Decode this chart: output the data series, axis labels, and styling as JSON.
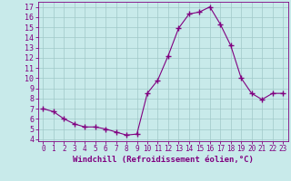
{
  "x": [
    0,
    1,
    2,
    3,
    4,
    5,
    6,
    7,
    8,
    9,
    10,
    11,
    12,
    13,
    14,
    15,
    16,
    17,
    18,
    19,
    20,
    21,
    22,
    23
  ],
  "y": [
    7.0,
    6.7,
    6.0,
    5.5,
    5.2,
    5.2,
    5.0,
    4.7,
    4.4,
    4.5,
    8.5,
    9.8,
    12.2,
    14.9,
    16.3,
    16.5,
    17.0,
    15.3,
    13.2,
    10.0,
    8.5,
    7.9,
    8.5,
    8.5
  ],
  "line_color": "#800080",
  "marker": "+",
  "marker_size": 4,
  "bg_color": "#c8eaea",
  "grid_color": "#a0c8c8",
  "xlabel": "Windchill (Refroidissement éolien,°C)",
  "xlabel_fontsize": 6.5,
  "ylabel_ticks": [
    4,
    5,
    6,
    7,
    8,
    9,
    10,
    11,
    12,
    13,
    14,
    15,
    16,
    17
  ],
  "xlim": [
    -0.5,
    23.5
  ],
  "ylim": [
    3.8,
    17.5
  ],
  "xtick_labels": [
    "0",
    "1",
    "2",
    "3",
    "4",
    "5",
    "6",
    "7",
    "8",
    "9",
    "10",
    "11",
    "12",
    "13",
    "14",
    "15",
    "16",
    "17",
    "18",
    "19",
    "20",
    "21",
    "22",
    "23"
  ],
  "tick_color": "#800080",
  "spine_color": "#800080",
  "tick_fontsize": 5.5,
  "ytick_fontsize": 6.0
}
